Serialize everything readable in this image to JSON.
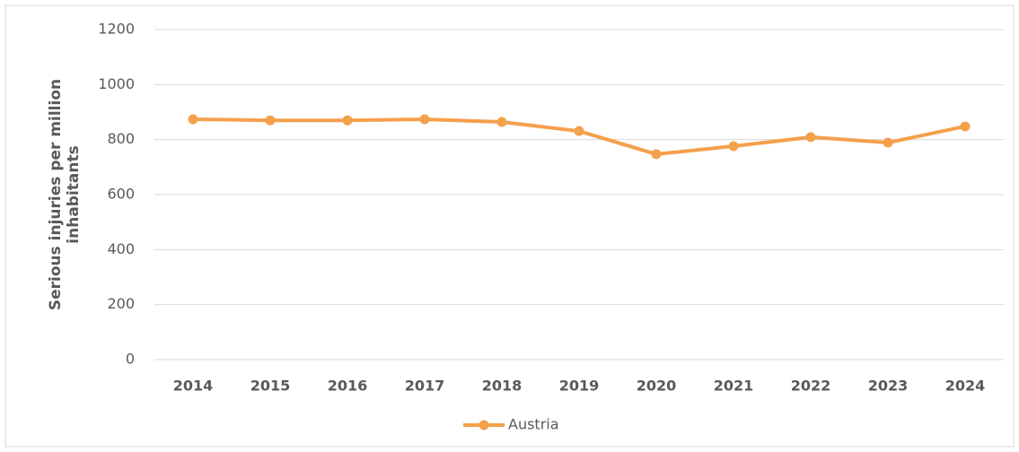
{
  "chart_data": {
    "type": "line",
    "ylabel": [
      "Serious injuries per million",
      "inhabitants"
    ],
    "categories": [
      "2014",
      "2015",
      "2016",
      "2017",
      "2018",
      "2019",
      "2020",
      "2021",
      "2022",
      "2023",
      "2024"
    ],
    "series": [
      {
        "name": "Austria",
        "color": "#f5a04b",
        "values": [
          874,
          870,
          870,
          874,
          864,
          831,
          747,
          776,
          809,
          789,
          848
        ]
      }
    ],
    "ylim": [
      0,
      1200
    ],
    "yticks": [
      0,
      200,
      400,
      600,
      800,
      1000,
      1200
    ],
    "grid": true,
    "legend": "bottom"
  }
}
